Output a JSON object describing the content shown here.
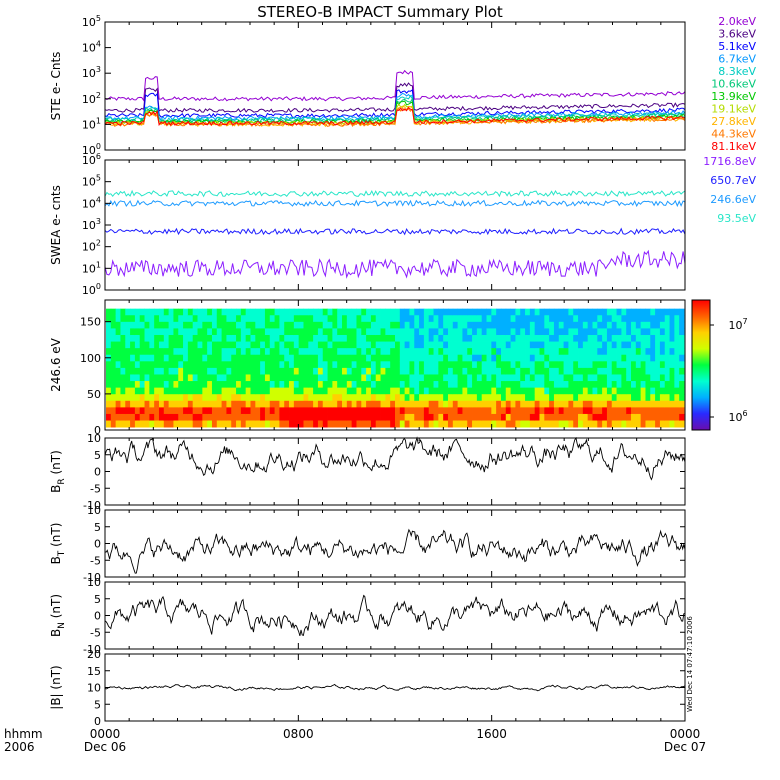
{
  "title": "STEREO-B IMPACT Summary Plot",
  "colors": {
    "frame": "#000000",
    "colorbar": [
      "#6a0dad",
      "#2a2aff",
      "#00b0ff",
      "#00ffd0",
      "#00ff40",
      "#d0ff00",
      "#ffd000",
      "#ff6000",
      "#ff0000"
    ]
  },
  "chart_data": [
    {
      "type": "line",
      "id": "ste",
      "ylabel": "STE e- Cnts",
      "yscale": "log",
      "ylim": [
        1,
        100000
      ],
      "yticks": [
        "10^0",
        "10^1",
        "10^2",
        "10^3",
        "10^4",
        "10^5"
      ],
      "series": [
        {
          "name": "2.0keV",
          "color": "#9400d3",
          "base_log": 2.0
        },
        {
          "name": "3.6keV",
          "color": "#4b0082",
          "base_log": 1.55
        },
        {
          "name": "5.1keV",
          "color": "#0000ff",
          "base_log": 1.35
        },
        {
          "name": "6.7keV",
          "color": "#0096ff",
          "base_log": 1.25
        },
        {
          "name": "8.3keV",
          "color": "#00ccc0",
          "base_log": 1.2
        },
        {
          "name": "10.6keV",
          "color": "#00c878",
          "base_log": 1.15
        },
        {
          "name": "13.9keV",
          "color": "#00c800",
          "base_log": 1.1
        },
        {
          "name": "19.1keV",
          "color": "#b4dc00",
          "base_log": 1.05
        },
        {
          "name": "27.8keV",
          "color": "#ffb400",
          "base_log": 1.0
        },
        {
          "name": "44.3keV",
          "color": "#ff7800",
          "base_log": 1.0
        },
        {
          "name": "81.1keV",
          "color": "#ff0000",
          "base_log": 1.05
        }
      ]
    },
    {
      "type": "line",
      "id": "swea",
      "ylabel": "SWEA e- cnts",
      "yscale": "log",
      "ylim": [
        1,
        1000000
      ],
      "yticks": [
        "10^0",
        "10^1",
        "10^2",
        "10^3",
        "10^4",
        "10^5",
        "10^6"
      ],
      "series": [
        {
          "name": "1716.8eV",
          "color": "#8c1eff",
          "base_log": 1.0
        },
        {
          "name": "650.7eV",
          "color": "#1e1eff",
          "base_log": 2.7
        },
        {
          "name": "246.6eV",
          "color": "#1e9bff",
          "base_log": 4.0
        },
        {
          "name": "93.5eV",
          "color": "#28e6c8",
          "base_log": 4.45
        }
      ]
    },
    {
      "type": "heatmap",
      "id": "pad",
      "ylabel": "246.6 eV",
      "ylim": [
        0,
        180
      ],
      "yticks": [
        0,
        50,
        100,
        150
      ],
      "colorbar_ticks": [
        "10^6",
        "10^7"
      ]
    },
    {
      "type": "line",
      "id": "br",
      "ylabel_main": "B",
      "ylabel_sub": "R",
      "ylabel_unit": " (nT)",
      "ylim": [
        -10,
        10
      ],
      "yticks": [
        -10,
        -5,
        0,
        5,
        10
      ],
      "mean": 5
    },
    {
      "type": "line",
      "id": "bt",
      "ylabel_main": "B",
      "ylabel_sub": "T",
      "ylabel_unit": " (nT)",
      "ylim": [
        -10,
        10
      ],
      "yticks": [
        -10,
        -5,
        0,
        5,
        10
      ],
      "mean": -2
    },
    {
      "type": "line",
      "id": "bn",
      "ylabel_main": "B",
      "ylabel_sub": "N",
      "ylabel_unit": " (nT)",
      "ylim": [
        -10,
        10
      ],
      "yticks": [
        -10,
        -5,
        0,
        5,
        10
      ],
      "mean": 0
    },
    {
      "type": "line",
      "id": "bmag",
      "ylabel_main": "|B|",
      "ylabel_sub": "",
      "ylabel_unit": " (nT)",
      "ylim": [
        0,
        20
      ],
      "yticks": [
        0,
        5,
        10,
        15,
        20
      ],
      "mean": 10
    }
  ],
  "xaxis": {
    "ticks": [
      {
        "time": "0000",
        "date": "Dec 06"
      },
      {
        "time": "0800",
        "date": ""
      },
      {
        "time": "1600",
        "date": ""
      },
      {
        "time": "0000",
        "date": "Dec 07"
      }
    ],
    "left_label_1": "hhmm",
    "left_label_2": "2006"
  },
  "timestamp": "Wed Dec 14 07:47:10 2006"
}
